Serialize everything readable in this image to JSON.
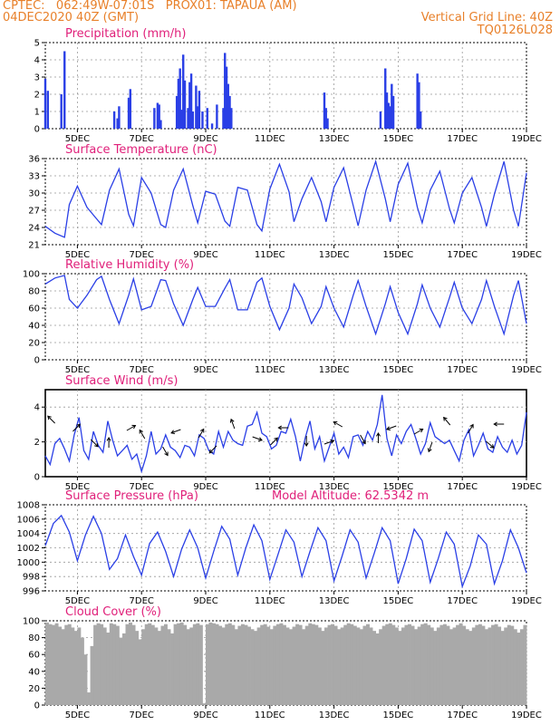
{
  "header": {
    "line1": "CPTEC:   062:49W-07:01S   PROX01: TAPAUA (AM)",
    "line2": "04DEC2020 40Z (GMT)",
    "grid_note": "Vertical Grid Line: 40Z",
    "code": "TQ0126L028"
  },
  "colors": {
    "header": "#e8802a",
    "title": "#e0207a",
    "line": "#2a3fe6",
    "cloud": "#a9a9a9",
    "grid": "#999999"
  },
  "x_ticks": [
    "5DEC",
    "7DEC",
    "9DEC",
    "11DEC",
    "13DEC",
    "15DEC",
    "17DEC",
    "19DEC"
  ],
  "chart_data": [
    {
      "type": "bar",
      "title": "Precipitation (mm/h)",
      "ylim": [
        0,
        5
      ],
      "yticks": [
        "0",
        "1",
        "2",
        "3",
        "4",
        "5"
      ],
      "x": [
        4.0,
        4.08,
        4.5,
        4.6,
        6.15,
        6.25,
        6.3,
        6.6,
        6.65,
        7.4,
        7.5,
        7.55,
        7.6,
        8.1,
        8.15,
        8.2,
        8.25,
        8.3,
        8.35,
        8.45,
        8.5,
        8.55,
        8.6,
        8.7,
        8.75,
        8.8,
        8.9,
        9.05,
        9.2,
        9.35,
        9.55,
        9.6,
        9.65,
        9.7,
        9.75,
        9.8,
        12.7,
        12.75,
        12.8,
        14.45,
        14.6,
        14.65,
        14.7,
        14.75,
        14.8,
        14.85,
        15.6,
        15.65,
        15.7
      ],
      "values": [
        2.9,
        2.2,
        2.0,
        4.5,
        1.0,
        0.6,
        1.3,
        1.8,
        2.3,
        1.2,
        1.5,
        1.4,
        0.5,
        1.9,
        2.9,
        3.5,
        1.1,
        4.3,
        2.8,
        1.2,
        2.7,
        3.2,
        1.0,
        2.5,
        1.3,
        2.2,
        1.0,
        1.2,
        0.3,
        1.4,
        1.2,
        4.4,
        3.6,
        2.6,
        1.9,
        1.2,
        2.1,
        1.2,
        0.6,
        1.0,
        3.5,
        2.1,
        1.5,
        1.3,
        2.6,
        1.9,
        3.2,
        2.7,
        1.0
      ]
    },
    {
      "type": "line",
      "title": "Surface Temperature (nC)",
      "ylim": [
        21,
        36
      ],
      "yticks": [
        "21",
        "24",
        "27",
        "30",
        "33",
        "36"
      ],
      "x": [
        4.0,
        4.3,
        4.6,
        4.75,
        5.0,
        5.3,
        5.6,
        5.75,
        6.0,
        6.3,
        6.6,
        6.75,
        7.0,
        7.3,
        7.6,
        7.75,
        8.0,
        8.3,
        8.6,
        8.75,
        9.0,
        9.3,
        9.6,
        9.75,
        10.0,
        10.3,
        10.6,
        10.75,
        11.0,
        11.3,
        11.6,
        11.75,
        12.0,
        12.3,
        12.6,
        12.75,
        13.0,
        13.3,
        13.6,
        13.75,
        14.0,
        14.3,
        14.6,
        14.75,
        15.0,
        15.3,
        15.6,
        15.75,
        16.0,
        16.3,
        16.6,
        16.75,
        17.0,
        17.3,
        17.6,
        17.75,
        18.0,
        18.3,
        18.6,
        18.75,
        19.0
      ],
      "values": [
        24.2,
        23.0,
        22.3,
        28.0,
        31.2,
        27.5,
        25.5,
        24.5,
        30.5,
        34.2,
        26.3,
        24.3,
        32.7,
        30.0,
        24.5,
        24.0,
        30.5,
        34.2,
        27.8,
        24.8,
        30.3,
        29.8,
        25.1,
        24.2,
        31.0,
        30.5,
        24.5,
        23.4,
        30.7,
        35.0,
        30.2,
        25.0,
        29.0,
        32.7,
        28.5,
        25.0,
        31.0,
        34.4,
        27.8,
        24.3,
        30.5,
        35.5,
        29.0,
        25.0,
        31.5,
        35.2,
        27.5,
        24.8,
        30.5,
        33.8,
        27.3,
        24.8,
        30.0,
        32.7,
        27.5,
        24.2,
        29.8,
        35.5,
        27.0,
        24.2,
        33.5
      ]
    },
    {
      "type": "line",
      "title": "Relative Humidity (%)",
      "ylim": [
        0,
        100
      ],
      "yticks": [
        "0",
        "20",
        "40",
        "60",
        "80",
        "100"
      ],
      "x": [
        4.0,
        4.3,
        4.6,
        4.75,
        5.0,
        5.3,
        5.6,
        5.75,
        6.0,
        6.3,
        6.6,
        6.75,
        7.0,
        7.3,
        7.6,
        7.75,
        8.0,
        8.3,
        8.6,
        8.75,
        9.0,
        9.3,
        9.6,
        9.75,
        10.0,
        10.3,
        10.6,
        10.75,
        11.0,
        11.3,
        11.6,
        11.75,
        12.0,
        12.3,
        12.6,
        12.75,
        13.0,
        13.3,
        13.6,
        13.75,
        14.0,
        14.3,
        14.6,
        14.75,
        15.0,
        15.3,
        15.6,
        15.75,
        16.0,
        16.3,
        16.6,
        16.75,
        17.0,
        17.3,
        17.6,
        17.75,
        18.0,
        18.3,
        18.6,
        18.75,
        19.0
      ],
      "values": [
        88,
        95,
        98,
        70,
        60,
        75,
        93,
        97,
        70,
        42,
        75,
        94,
        58,
        62,
        93,
        92,
        65,
        40,
        70,
        84,
        62,
        62,
        83,
        93,
        58,
        58,
        90,
        95,
        62,
        35,
        60,
        88,
        72,
        42,
        62,
        85,
        60,
        38,
        75,
        92,
        62,
        30,
        65,
        85,
        55,
        30,
        65,
        87,
        60,
        38,
        72,
        90,
        60,
        42,
        70,
        92,
        62,
        30,
        75,
        92,
        42
      ]
    },
    {
      "type": "line",
      "title": "Surface Wind (m/s)",
      "ylim": [
        0,
        5
      ],
      "yticks": [
        "0",
        "2",
        "4"
      ],
      "x": [
        4.0,
        4.15,
        4.3,
        4.45,
        4.6,
        4.75,
        4.9,
        5.05,
        5.2,
        5.35,
        5.5,
        5.65,
        5.8,
        5.95,
        6.1,
        6.25,
        6.4,
        6.55,
        6.7,
        6.85,
        7.0,
        7.15,
        7.3,
        7.45,
        7.6,
        7.75,
        7.9,
        8.05,
        8.2,
        8.35,
        8.5,
        8.65,
        8.8,
        8.95,
        9.1,
        9.25,
        9.4,
        9.55,
        9.7,
        9.85,
        10.0,
        10.15,
        10.3,
        10.45,
        10.6,
        10.75,
        10.9,
        11.05,
        11.2,
        11.35,
        11.5,
        11.65,
        11.8,
        11.95,
        12.1,
        12.25,
        12.4,
        12.55,
        12.7,
        12.85,
        13.0,
        13.15,
        13.3,
        13.45,
        13.6,
        13.75,
        13.9,
        14.05,
        14.2,
        14.35,
        14.5,
        14.65,
        14.8,
        14.95,
        15.1,
        15.25,
        15.4,
        15.55,
        15.7,
        15.85,
        16.0,
        16.15,
        16.3,
        16.45,
        16.6,
        16.75,
        16.9,
        17.05,
        17.2,
        17.35,
        17.5,
        17.65,
        17.8,
        17.95,
        18.1,
        18.25,
        18.4,
        18.55,
        18.7,
        18.85,
        19.0
      ],
      "values": [
        1.2,
        0.7,
        1.9,
        2.2,
        1.6,
        0.9,
        2.4,
        3.4,
        1.5,
        1.0,
        2.6,
        1.8,
        1.4,
        3.2,
        2.1,
        1.2,
        1.5,
        1.8,
        1.0,
        1.3,
        0.3,
        1.2,
        2.6,
        1.3,
        1.6,
        2.4,
        1.7,
        1.5,
        1.1,
        1.8,
        1.7,
        1.2,
        2.4,
        2.2,
        1.5,
        1.3,
        2.6,
        1.7,
        2.6,
        2.1,
        1.9,
        1.8,
        2.9,
        3.0,
        3.7,
        2.5,
        2.3,
        1.6,
        1.8,
        2.6,
        2.5,
        3.3,
        2.3,
        0.9,
        2.2,
        3.2,
        1.6,
        2.3,
        0.9,
        1.7,
        2.5,
        1.3,
        1.7,
        1.1,
        2.3,
        2.4,
        1.8,
        2.6,
        2.1,
        3.0,
        4.7,
        2.2,
        1.2,
        2.4,
        1.9,
        2.6,
        3.0,
        2.2,
        1.3,
        1.9,
        3.1,
        2.3,
        2.1,
        1.9,
        2.1,
        1.5,
        0.9,
        2.1,
        2.7,
        1.2,
        1.8,
        2.5,
        1.6,
        1.4,
        2.3,
        1.7,
        1.4,
        2.1,
        1.3,
        1.8,
        3.7
      ]
    },
    {
      "type": "line",
      "title": "Surface Pressure (hPa)",
      "annotation": "Model Altitude: 62.5342 m",
      "ylim": [
        996,
        1008
      ],
      "yticks": [
        "996",
        "998",
        "1000",
        "1002",
        "1004",
        "1006",
        "1008"
      ],
      "x": [
        4.0,
        4.25,
        4.5,
        4.75,
        5.0,
        5.25,
        5.5,
        5.75,
        6.0,
        6.25,
        6.5,
        6.75,
        7.0,
        7.25,
        7.5,
        7.75,
        8.0,
        8.25,
        8.5,
        8.75,
        9.0,
        9.25,
        9.5,
        9.75,
        10.0,
        10.25,
        10.5,
        10.75,
        11.0,
        11.25,
        11.5,
        11.75,
        12.0,
        12.25,
        12.5,
        12.75,
        13.0,
        13.25,
        13.5,
        13.75,
        14.0,
        14.25,
        14.5,
        14.75,
        15.0,
        15.25,
        15.5,
        15.75,
        16.0,
        16.25,
        16.5,
        16.75,
        17.0,
        17.25,
        17.5,
        17.75,
        18.0,
        18.25,
        18.5,
        18.75,
        19.0
      ],
      "values": [
        1002.3,
        1005.4,
        1006.5,
        1004.2,
        1000.2,
        1003.8,
        1006.4,
        1004.0,
        999.0,
        1000.5,
        1003.8,
        1000.8,
        998.2,
        1002.6,
        1004.2,
        1001.5,
        998.0,
        1001.8,
        1004.5,
        1002.0,
        997.8,
        1001.5,
        1005.0,
        1003.2,
        998.2,
        1002.0,
        1005.2,
        1003.0,
        997.6,
        1001.0,
        1004.5,
        1002.8,
        998.0,
        1001.5,
        1004.8,
        1003.0,
        997.4,
        1000.8,
        1004.5,
        1002.8,
        997.8,
        1001.2,
        1004.8,
        1003.0,
        997.0,
        1000.5,
        1004.6,
        1003.0,
        997.2,
        1000.5,
        1004.2,
        1002.5,
        996.6,
        999.5,
        1003.8,
        1002.5,
        997.0,
        1000.2,
        1004.5,
        1002.0,
        998.5
      ]
    },
    {
      "type": "bar",
      "title": "Cloud Cover (%)",
      "ylim": [
        0,
        100
      ],
      "yticks": [
        "0",
        "20",
        "40",
        "60",
        "80",
        "100"
      ],
      "x": [
        4.0,
        4.1,
        4.2,
        4.3,
        4.4,
        4.5,
        4.6,
        4.7,
        4.8,
        4.9,
        5.0,
        5.1,
        5.2,
        5.3,
        5.4,
        5.5,
        5.6,
        5.7,
        5.8,
        5.9,
        6.0,
        6.1,
        6.2,
        6.3,
        6.4,
        6.5,
        6.6,
        6.7,
        6.8,
        6.9,
        7.0,
        7.1,
        7.2,
        7.3,
        7.4,
        7.5,
        7.6,
        7.7,
        7.8,
        7.9,
        8.0,
        8.1,
        8.2,
        8.3,
        8.4,
        8.5,
        8.6,
        8.7,
        8.8,
        8.9,
        9.0,
        9.1,
        9.2,
        9.3,
        9.4,
        9.5,
        9.6,
        9.7,
        9.8,
        9.9,
        10.0,
        10.1,
        10.2,
        10.3,
        10.4,
        10.5,
        10.6,
        10.7,
        10.8,
        10.9,
        11.0,
        11.1,
        11.2,
        11.3,
        11.4,
        11.5,
        11.6,
        11.7,
        11.8,
        11.9,
        12.0,
        12.1,
        12.2,
        12.3,
        12.4,
        12.5,
        12.6,
        12.7,
        12.8,
        12.9,
        13.0,
        13.1,
        13.2,
        13.3,
        13.4,
        13.5,
        13.6,
        13.7,
        13.8,
        13.9,
        14.0,
        14.1,
        14.2,
        14.3,
        14.4,
        14.5,
        14.6,
        14.7,
        14.8,
        14.9,
        15.0,
        15.1,
        15.2,
        15.3,
        15.4,
        15.5,
        15.6,
        15.7,
        15.8,
        15.9,
        16.0,
        16.1,
        16.2,
        16.3,
        16.4,
        16.5,
        16.6,
        16.7,
        16.8,
        16.9,
        17.0,
        17.1,
        17.2,
        17.3,
        17.4,
        17.5,
        17.6,
        17.7,
        17.8,
        17.9,
        18.0,
        18.1,
        18.2,
        18.3,
        18.4,
        18.5,
        18.6,
        18.7,
        18.8,
        18.9
      ],
      "values": [
        98,
        96,
        95,
        97,
        93,
        90,
        95,
        96,
        92,
        88,
        92,
        80,
        60,
        15,
        70,
        95,
        97,
        96,
        92,
        86,
        97,
        96,
        94,
        80,
        85,
        96,
        98,
        95,
        88,
        78,
        90,
        96,
        97,
        95,
        92,
        88,
        94,
        96,
        90,
        85,
        96,
        97,
        98,
        95,
        90,
        92,
        96,
        97,
        95,
        2,
        96,
        98,
        97,
        96,
        94,
        92,
        96,
        97,
        95,
        90,
        94,
        96,
        95,
        93,
        90,
        88,
        92,
        95,
        96,
        93,
        90,
        94,
        96,
        97,
        95,
        92,
        90,
        93,
        96,
        95,
        90,
        94,
        97,
        96,
        95,
        92,
        88,
        92,
        95,
        96,
        94,
        90,
        92,
        95,
        97,
        96,
        94,
        92,
        90,
        94,
        96,
        92,
        88,
        85,
        90,
        94,
        96,
        97,
        95,
        92,
        88,
        92,
        95,
        96,
        94,
        90,
        93,
        96,
        97,
        95,
        92,
        88,
        92,
        95,
        96,
        94,
        90,
        92,
        95,
        97,
        94,
        90,
        88,
        92,
        95,
        96,
        94,
        90,
        92,
        95,
        96,
        93,
        88,
        92,
        95,
        94,
        90,
        86,
        90,
        95
      ]
    }
  ]
}
